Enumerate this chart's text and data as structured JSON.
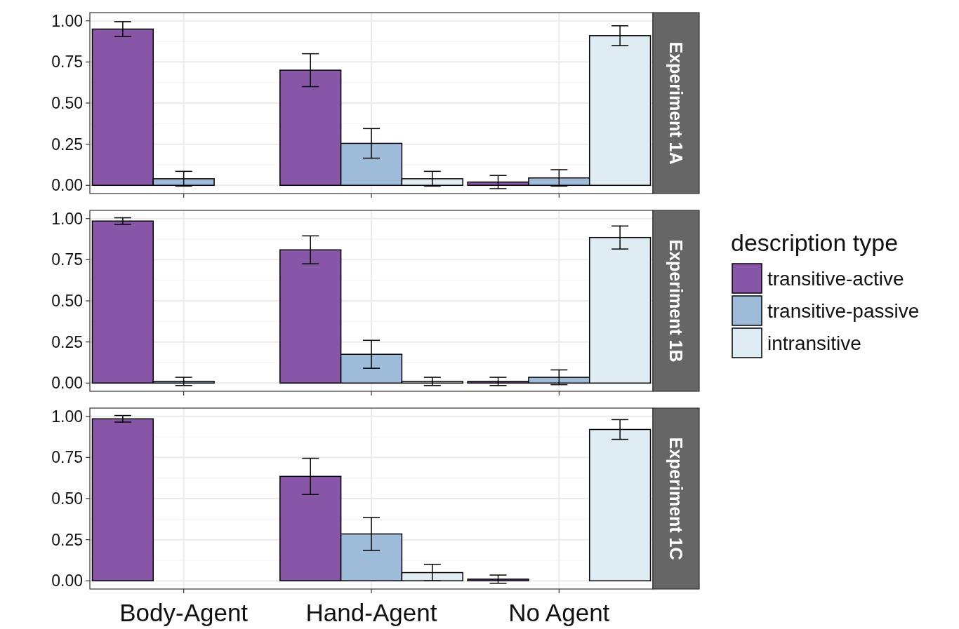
{
  "chart_data": [
    {
      "type": "bar",
      "annotations": [
        "Experiment 1A"
      ],
      "categories": [
        null,
        null,
        null
      ],
      "ylim": [
        -0.05,
        1.05
      ],
      "yticks": [
        {
          "value": 0,
          "label": "0.00"
        },
        {
          "value": 0.25,
          "label": "0.25"
        },
        {
          "value": 0.5,
          "label": "0.50"
        },
        {
          "value": 0.75,
          "label": "0.75"
        },
        {
          "value": 1,
          "label": "1.00"
        }
      ],
      "grid": true,
      "series": [
        {
          "color": "#8856a7",
          "values": [
            0.95,
            0.7,
            0.02
          ],
          "errors": [
            0.045,
            0.1,
            0.04
          ]
        },
        {
          "color": "#9ebcda",
          "values": [
            0.04,
            0.255,
            0.045
          ],
          "errors": [
            0.045,
            0.09,
            0.05
          ]
        },
        {
          "color": "#e0ecf4",
          "values": [
            0,
            0.04,
            0.91
          ],
          "errors": [
            null,
            0.045,
            0.06
          ]
        }
      ]
    },
    {
      "type": "bar",
      "annotations": [
        "Experiment 1B"
      ],
      "categories": [
        null,
        null,
        null
      ],
      "ylim": [
        -0.05,
        1.05
      ],
      "yticks": [
        {
          "value": 0,
          "label": "0.00"
        },
        {
          "value": 0.25,
          "label": "0.25"
        },
        {
          "value": 0.5,
          "label": "0.50"
        },
        {
          "value": 0.75,
          "label": "0.75"
        },
        {
          "value": 1,
          "label": "1.00"
        }
      ],
      "grid": true,
      "legend": "right",
      "legend_title": "description type",
      "series": [
        {
          "name": "transitive-active",
          "color": "#8856a7",
          "values": [
            0.985,
            0.81,
            0.01
          ],
          "errors": [
            0.02,
            0.085,
            0.025
          ]
        },
        {
          "name": "transitive-passive",
          "color": "#9ebcda",
          "values": [
            0.01,
            0.175,
            0.035
          ],
          "errors": [
            0.025,
            0.085,
            0.045
          ]
        },
        {
          "name": "intransitive",
          "color": "#e0ecf4",
          "values": [
            0,
            0.01,
            0.885
          ],
          "errors": [
            null,
            0.025,
            0.07
          ]
        }
      ]
    },
    {
      "type": "bar",
      "annotations": [
        "Experiment 1C"
      ],
      "categories": [
        "Body-Agent",
        "Hand-Agent",
        "No Agent"
      ],
      "ylim": [
        -0.05,
        1.05
      ],
      "yticks": [
        {
          "value": 0,
          "label": "0.00"
        },
        {
          "value": 0.25,
          "label": "0.25"
        },
        {
          "value": 0.5,
          "label": "0.50"
        },
        {
          "value": 0.75,
          "label": "0.75"
        },
        {
          "value": 1,
          "label": "1.00"
        }
      ],
      "grid": true,
      "series": [
        {
          "color": "#8856a7",
          "values": [
            0.985,
            0.635,
            0.01
          ],
          "errors": [
            0.02,
            0.11,
            0.025
          ]
        },
        {
          "color": "#9ebcda",
          "values": [
            0,
            0.285,
            0
          ],
          "errors": [
            null,
            0.1,
            null
          ]
        },
        {
          "color": "#e0ecf4",
          "values": [
            0,
            0.05,
            0.92
          ],
          "errors": [
            null,
            0.05,
            0.06
          ]
        }
      ]
    }
  ]
}
